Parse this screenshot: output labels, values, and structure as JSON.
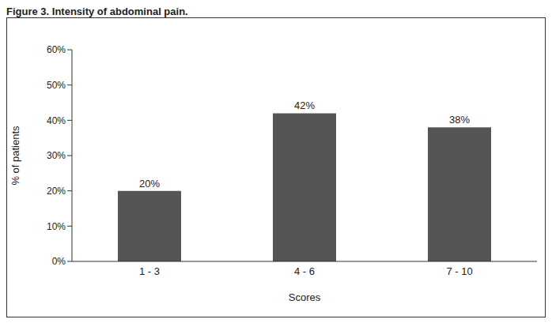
{
  "chart_data": {
    "type": "bar",
    "title": "Figure 3. Intensity of abdominal pain.",
    "x_label": "Scores",
    "y_label": "% of patients",
    "categories": [
      "1 - 3",
      "4 - 6",
      "7 - 10"
    ],
    "values": [
      20,
      42,
      38
    ],
    "value_labels": [
      "20%",
      "42%",
      "38%"
    ],
    "data_labels": true,
    "color": "#555555",
    "ylim": [
      0,
      60
    ],
    "yticks": [
      {
        "value": 0,
        "label": "0%"
      },
      {
        "value": 10,
        "label": "10%"
      },
      {
        "value": 20,
        "label": "20%"
      },
      {
        "value": 30,
        "label": "30%"
      },
      {
        "value": 40,
        "label": "40%"
      },
      {
        "value": 50,
        "label": "50%"
      },
      {
        "value": 60,
        "label": "60%"
      }
    ],
    "grid": false
  }
}
